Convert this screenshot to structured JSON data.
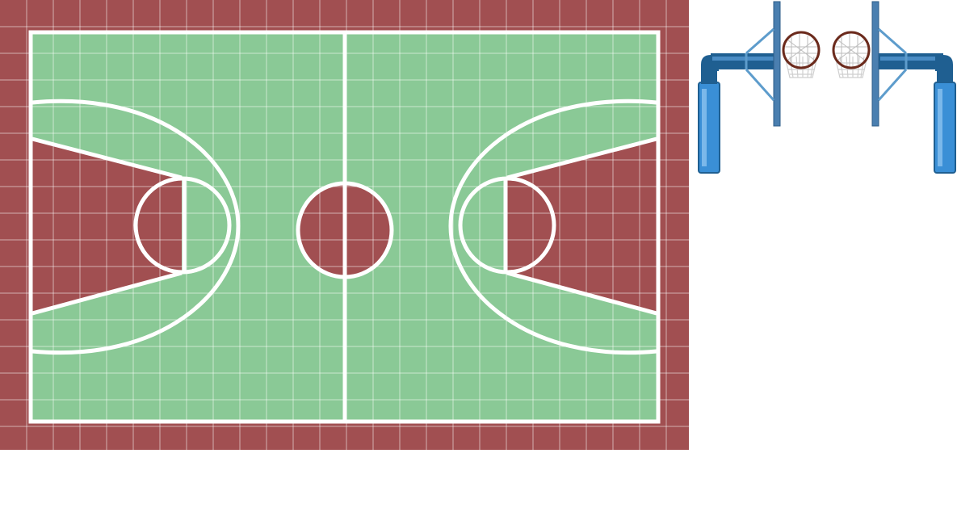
{
  "colors": {
    "background": "#ffffff",
    "court_border": "#a14f51",
    "court_floor": "#8ac996",
    "key_paint": "#a14f51",
    "court_lines": "#ffffff",
    "grid_lines": "#ffffff",
    "pipe_dark": "#1f5f91",
    "pipe_light": "#3a8fd6",
    "pole": "#4a7fb0",
    "brace": "#5d9ccc",
    "rim": "#6b2a1c",
    "net": "#cfcfcf"
  },
  "assets": {
    "court": {
      "name": "basketball-court-tile",
      "components": [
        "border-tiles",
        "floor",
        "half-court-line",
        "center-circle",
        "left-key",
        "right-key",
        "left-three-point-arc",
        "right-three-point-arc"
      ]
    },
    "hoop_sprites": {
      "name": "hoop-sprite-sheet",
      "components": [
        "left-post-frame",
        "left-hoop-net",
        "right-hoop-net",
        "right-post-frame"
      ]
    }
  }
}
